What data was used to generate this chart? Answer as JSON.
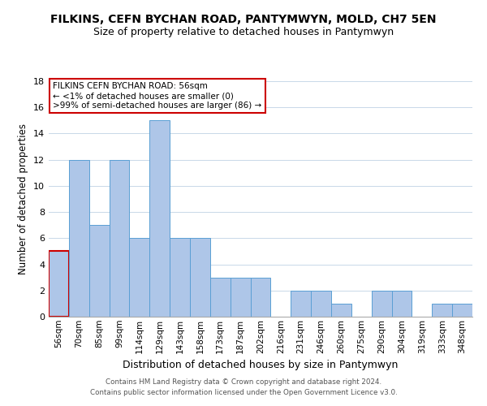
{
  "title": "FILKINS, CEFN BYCHAN ROAD, PANTYMWYN, MOLD, CH7 5EN",
  "subtitle": "Size of property relative to detached houses in Pantymwyn",
  "xlabel": "Distribution of detached houses by size in Pantymwyn",
  "ylabel": "Number of detached properties",
  "bar_labels": [
    "56sqm",
    "70sqm",
    "85sqm",
    "99sqm",
    "114sqm",
    "129sqm",
    "143sqm",
    "158sqm",
    "173sqm",
    "187sqm",
    "202sqm",
    "216sqm",
    "231sqm",
    "246sqm",
    "260sqm",
    "275sqm",
    "290sqm",
    "304sqm",
    "319sqm",
    "333sqm",
    "348sqm"
  ],
  "bar_values": [
    5,
    12,
    7,
    12,
    6,
    15,
    6,
    6,
    3,
    3,
    3,
    0,
    2,
    2,
    1,
    0,
    2,
    2,
    0,
    1,
    1
  ],
  "highlight_index": 0,
  "bar_color": "#aec6e8",
  "bar_edge_color": "#5a9fd4",
  "highlight_edge_color": "#cc0000",
  "ylim": [
    0,
    18
  ],
  "yticks": [
    0,
    2,
    4,
    6,
    8,
    10,
    12,
    14,
    16,
    18
  ],
  "annotation_title": "FILKINS CEFN BYCHAN ROAD: 56sqm",
  "annotation_line1": "← <1% of detached houses are smaller (0)",
  "annotation_line2": ">99% of semi-detached houses are larger (86) →",
  "annotation_box_color": "#ffffff",
  "annotation_box_edge": "#cc0000",
  "footer_line1": "Contains HM Land Registry data © Crown copyright and database right 2024.",
  "footer_line2": "Contains public sector information licensed under the Open Government Licence v3.0."
}
